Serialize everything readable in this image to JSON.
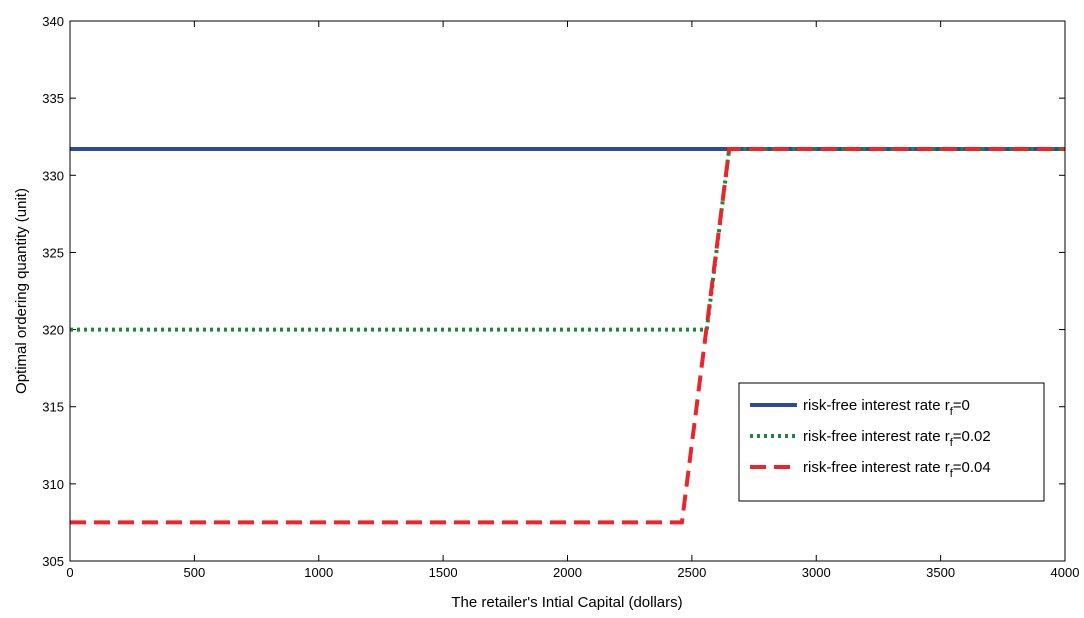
{
  "chart_data": {
    "type": "line",
    "title": "",
    "xlabel": "The retailer's Intial Capital (dollars)",
    "ylabel": "Optimal ordering quantity (unit)",
    "xlim": [
      0,
      4000
    ],
    "ylim": [
      305,
      340
    ],
    "xticks": [
      0,
      500,
      1000,
      1500,
      2000,
      2500,
      3000,
      3500,
      4000
    ],
    "yticks": [
      305,
      310,
      315,
      320,
      325,
      330,
      335,
      340
    ],
    "grid": false,
    "legend_position": "right",
    "series": [
      {
        "name": "risk-free interest rate r",
        "subscript": "f",
        "suffix": "=0",
        "color": "#2e4b9b",
        "style": "solid",
        "points": [
          [
            0,
            331.7
          ],
          [
            4000,
            331.7
          ]
        ]
      },
      {
        "name": "risk-free interest rate r",
        "subscript": "f",
        "suffix": "=0.02",
        "color": "#1a8a3a",
        "style": "dotted",
        "points": [
          [
            0,
            320
          ],
          [
            2560,
            320
          ],
          [
            2650,
            331.7
          ],
          [
            4000,
            331.7
          ]
        ]
      },
      {
        "name": "risk-free interest rate r",
        "subscript": "f",
        "suffix": "=0.04",
        "color": "#e8262b",
        "style": "dashed",
        "points": [
          [
            0,
            307.5
          ],
          [
            2460,
            307.5
          ],
          [
            2650,
            331.7
          ],
          [
            4000,
            331.7
          ]
        ]
      }
    ]
  }
}
